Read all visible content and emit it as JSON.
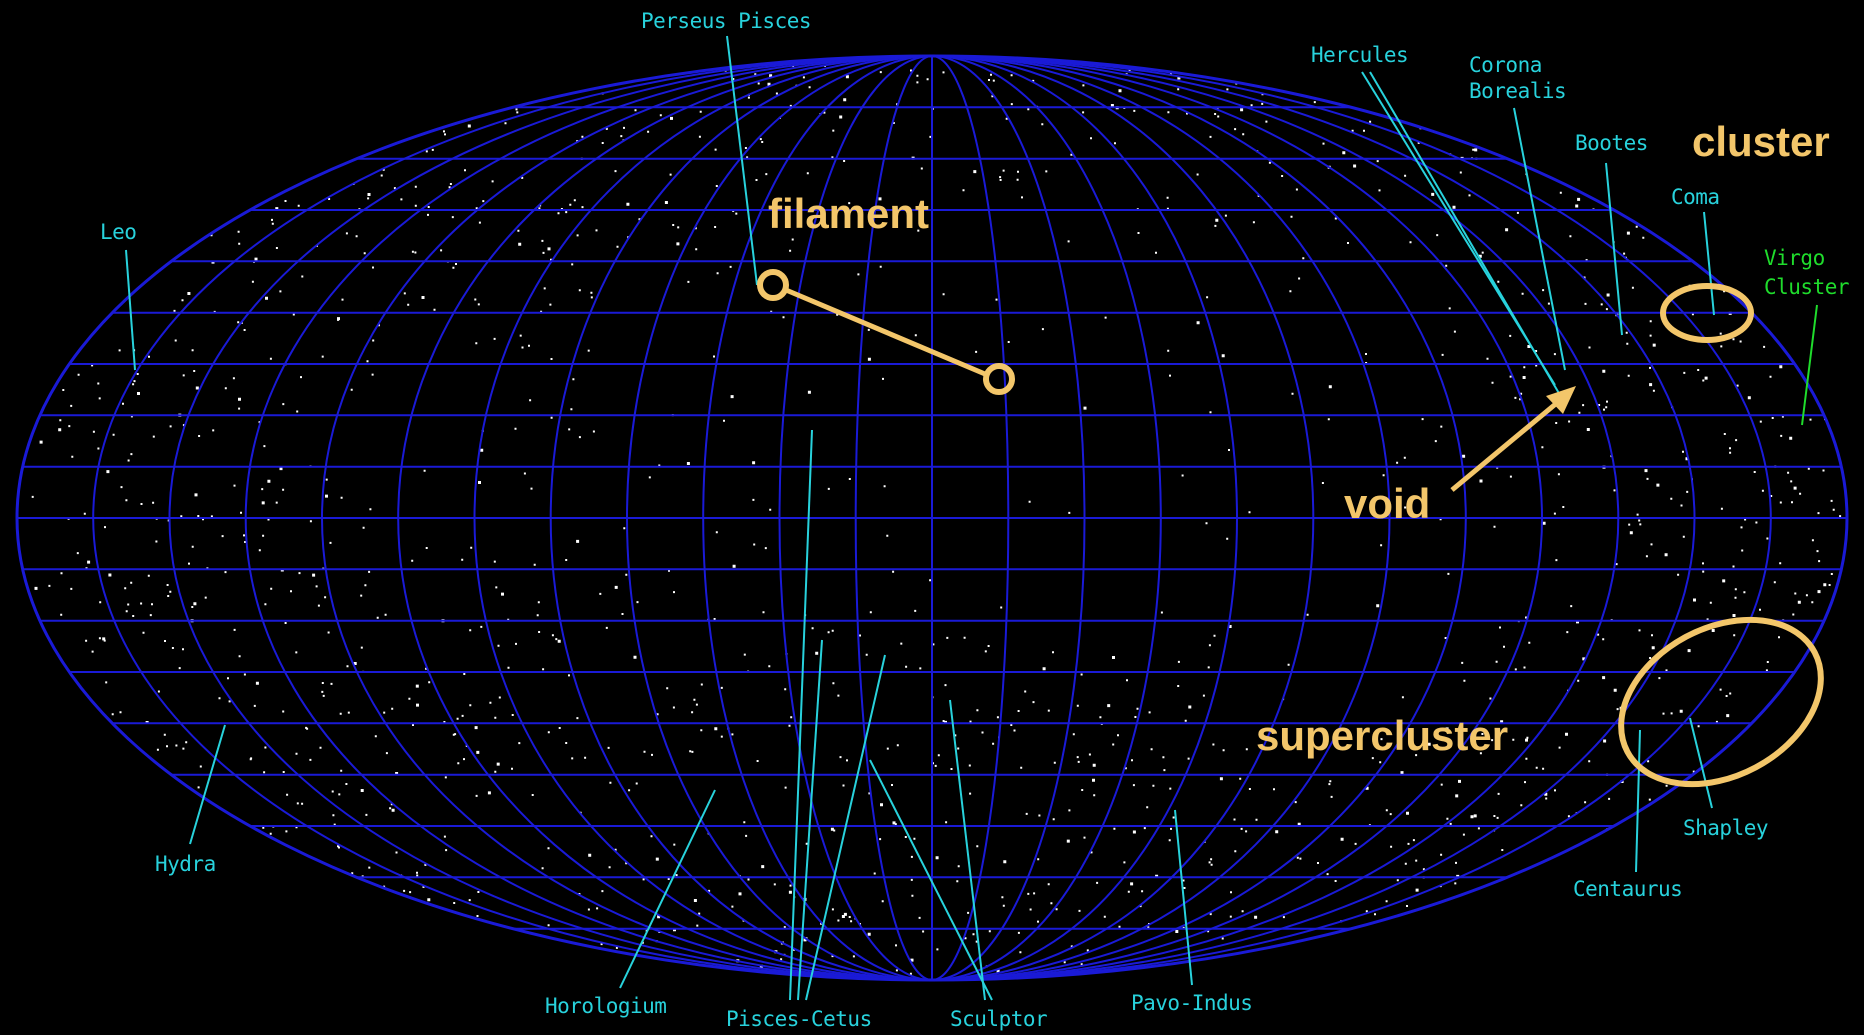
{
  "map": {
    "colors": {
      "background": "#000000",
      "grid": "#1a1ad6",
      "galaxies": "#ffffff",
      "region_label": "#28d2dc",
      "virgo_label": "#1fdc2c",
      "annotation": "#f3c66a"
    },
    "projection": "all-sky elliptical (Aitoff-style) with latitude/longitude grid",
    "regions": {
      "perseus_pisces": "Perseus Pisces",
      "hercules": "Hercules",
      "corona_borealis_line1": "Corona",
      "corona_borealis_line2": "Borealis",
      "bootes": "Bootes",
      "coma": "Coma",
      "virgo_line1": "Virgo",
      "virgo_line2": "Cluster",
      "leo": "Leo",
      "hydra": "Hydra",
      "horologium": "Horologium",
      "pisces_cetus": "Pisces-Cetus",
      "sculptor": "Sculptor",
      "pavo_indus": "Pavo-Indus",
      "centaurus": "Centaurus",
      "shapley": "Shapley"
    },
    "annotations": {
      "filament": "filament",
      "cluster": "cluster",
      "void": "void",
      "supercluster": "supercluster"
    }
  }
}
